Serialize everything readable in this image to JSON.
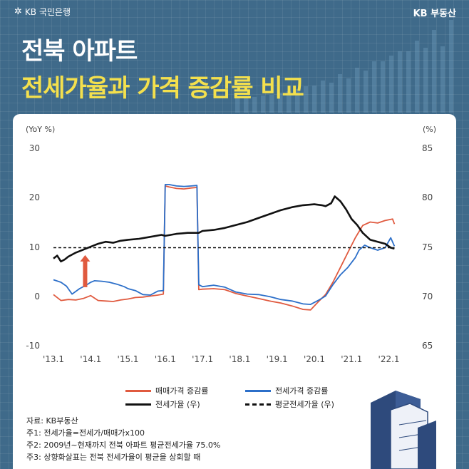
{
  "brand": {
    "left": "KB 국민은행",
    "right": "KB 부동산"
  },
  "title": {
    "line1": "전북 아파트",
    "line2": "전세가율과 가격 증감률 비교"
  },
  "chart_data": {
    "type": "line",
    "left_unit": "(YoY %)",
    "right_unit": "(%)",
    "ylim_left": [
      -10,
      30
    ],
    "ylim_right": [
      65,
      85
    ],
    "xlim": [
      2013.0,
      2022.2
    ],
    "yticks_left": [
      "30",
      "20",
      "10",
      "0",
      "-10"
    ],
    "yticks_right": [
      "85",
      "80",
      "75",
      "70",
      "65"
    ],
    "xticks": [
      "'13.1",
      "'14.1",
      "'15.1",
      "'16.1",
      "'17.1",
      "'18.1",
      "'19.1",
      "'20.1",
      "'21.1",
      "'22.1"
    ],
    "series": [
      {
        "name": "매매가격 증감률",
        "axis": "left",
        "color": "#e05a3f",
        "x": [
          2013.0,
          2013.2,
          2013.4,
          2013.6,
          2013.8,
          2014.0,
          2014.2,
          2014.4,
          2014.6,
          2014.8,
          2015.0,
          2015.2,
          2015.4,
          2015.6,
          2015.8,
          2015.95,
          2016.0,
          2016.1,
          2016.3,
          2016.5,
          2016.7,
          2016.85,
          2016.9,
          2017.0,
          2017.3,
          2017.6,
          2017.9,
          2018.2,
          2018.5,
          2018.8,
          2019.1,
          2019.4,
          2019.7,
          2019.9,
          2020.1,
          2020.3,
          2020.5,
          2020.7,
          2020.9,
          2021.1,
          2021.3,
          2021.5,
          2021.7,
          2021.9,
          2022.1,
          2022.15
        ],
        "values": [
          0.5,
          -0.7,
          -0.5,
          -0.6,
          -0.3,
          0.3,
          -0.7,
          -0.8,
          -0.9,
          -0.6,
          -0.4,
          -0.1,
          0.0,
          0.2,
          0.4,
          0.6,
          22.5,
          22.3,
          22.0,
          21.9,
          22.1,
          22.2,
          1.5,
          1.6,
          1.7,
          1.5,
          0.7,
          0.2,
          -0.3,
          -0.8,
          -1.2,
          -1.8,
          -2.5,
          -2.6,
          -1.0,
          0.5,
          3.0,
          6.0,
          9.0,
          12.0,
          14.5,
          15.2,
          15.0,
          15.5,
          15.8,
          14.8
        ]
      },
      {
        "name": "전세가격 증감률",
        "axis": "left",
        "color": "#2c6fc9",
        "x": [
          2013.0,
          2013.2,
          2013.35,
          2013.5,
          2013.7,
          2013.9,
          2014.0,
          2014.1,
          2014.3,
          2014.5,
          2014.7,
          2014.9,
          2015.0,
          2015.2,
          2015.4,
          2015.6,
          2015.8,
          2015.95,
          2016.0,
          2016.1,
          2016.3,
          2016.5,
          2016.7,
          2016.85,
          2016.9,
          2017.0,
          2017.3,
          2017.6,
          2017.9,
          2018.2,
          2018.5,
          2018.8,
          2019.1,
          2019.4,
          2019.7,
          2019.9,
          2020.1,
          2020.3,
          2020.5,
          2020.7,
          2020.9,
          2021.1,
          2021.2,
          2021.35,
          2021.5,
          2021.7,
          2021.9,
          2022.05,
          2022.15
        ],
        "values": [
          3.5,
          3.0,
          2.2,
          0.6,
          1.7,
          2.5,
          3.0,
          3.3,
          3.2,
          3.0,
          2.6,
          2.1,
          1.7,
          1.3,
          0.5,
          0.4,
          1.2,
          1.3,
          22.8,
          22.8,
          22.5,
          22.4,
          22.5,
          22.6,
          2.5,
          2.1,
          2.4,
          2.0,
          1.0,
          0.6,
          0.5,
          0.1,
          -0.5,
          -0.8,
          -1.4,
          -1.5,
          -0.7,
          0.2,
          2.5,
          4.5,
          6.0,
          8.0,
          9.5,
          10.5,
          10.0,
          9.5,
          10.0,
          12.0,
          10.3
        ]
      },
      {
        "name": "전세가율 (우)",
        "axis": "right",
        "color": "#111111",
        "x": [
          2013.0,
          2013.1,
          2013.2,
          2013.3,
          2013.4,
          2013.6,
          2013.8,
          2014.0,
          2014.2,
          2014.4,
          2014.6,
          2014.8,
          2015.0,
          2015.3,
          2015.6,
          2015.9,
          2016.0,
          2016.3,
          2016.6,
          2016.9,
          2017.0,
          2017.3,
          2017.6,
          2017.9,
          2018.2,
          2018.5,
          2018.8,
          2019.1,
          2019.4,
          2019.7,
          2020.0,
          2020.2,
          2020.3,
          2020.45,
          2020.55,
          2020.7,
          2020.85,
          2021.0,
          2021.15,
          2021.3,
          2021.5,
          2021.7,
          2021.9,
          2022.05,
          2022.15
        ],
        "values": [
          73.9,
          74.2,
          73.6,
          73.8,
          74.1,
          74.5,
          74.8,
          75.1,
          75.4,
          75.6,
          75.5,
          75.7,
          75.8,
          75.9,
          76.1,
          76.3,
          76.2,
          76.4,
          76.5,
          76.5,
          76.7,
          76.8,
          77.0,
          77.3,
          77.6,
          78.0,
          78.4,
          78.8,
          79.1,
          79.3,
          79.4,
          79.3,
          79.2,
          79.5,
          80.2,
          79.7,
          78.9,
          77.9,
          77.3,
          76.5,
          75.8,
          75.6,
          75.4,
          75.0,
          74.9
        ]
      },
      {
        "name": "평균전세가율 (우)",
        "axis": "right",
        "color": "#111111",
        "dashed": true,
        "x": [
          2013.0,
          2022.15
        ],
        "values": [
          75.0,
          75.0
        ]
      }
    ]
  },
  "legend": [
    {
      "label": "매매가격 증감률",
      "color": "#e05a3f"
    },
    {
      "label": "전세가격 증감률",
      "color": "#2c6fc9"
    },
    {
      "label": "전세가율 (우)",
      "color": "#111111"
    },
    {
      "label": "평균전세가율 (우)",
      "color": "#111111"
    }
  ],
  "notes": [
    "자료: KB부동산",
    "주1: 전세가율=전세가/매매가x100",
    "주2: 2009년~현재까지 전북 아파트 평균전세가율 75.0%",
    "주3: 상향화살표는 전북 전세가율이 평균을 상회할 때"
  ]
}
